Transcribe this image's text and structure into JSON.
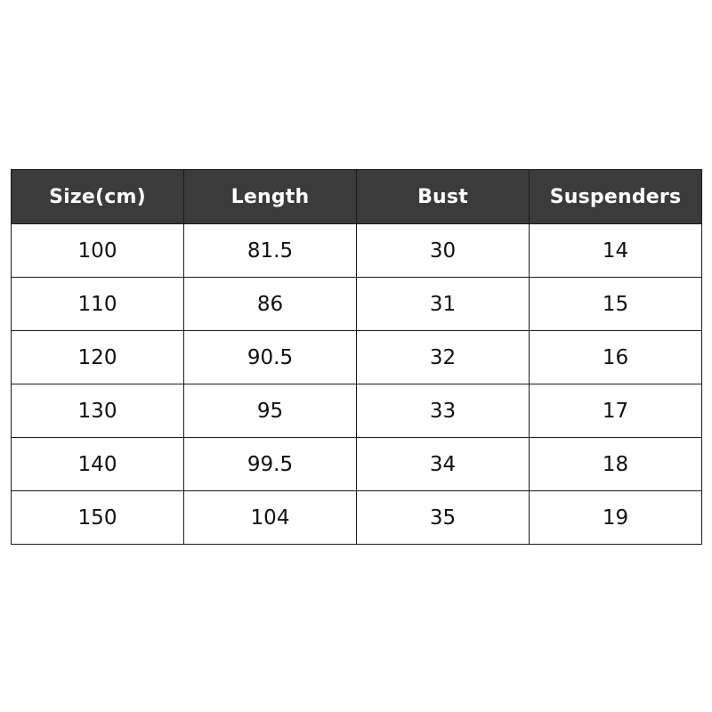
{
  "table": {
    "header_bg": "#3b3b3b",
    "headers": [
      "Size(cm)",
      "Length",
      "Bust",
      "Suspenders"
    ],
    "rows": [
      [
        "100",
        "81.5",
        "30",
        "14"
      ],
      [
        "110",
        "86",
        "31",
        "15"
      ],
      [
        "120",
        "90.5",
        "32",
        "16"
      ],
      [
        "130",
        "95",
        "33",
        "17"
      ],
      [
        "140",
        "99.5",
        "34",
        "18"
      ],
      [
        "150",
        "104",
        "35",
        "19"
      ]
    ]
  }
}
